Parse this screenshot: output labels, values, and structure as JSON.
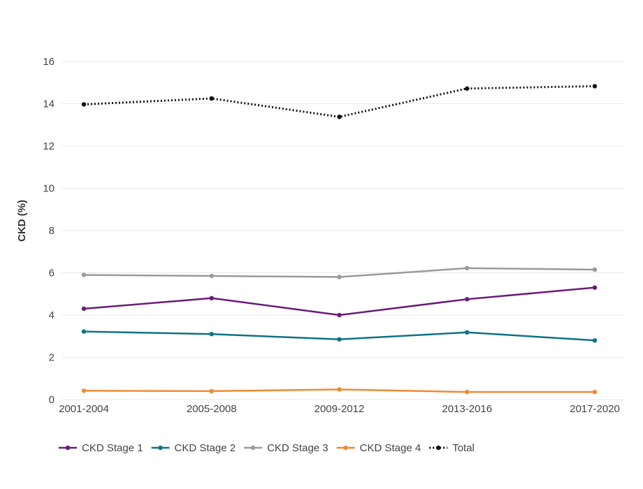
{
  "chart_data": {
    "type": "line",
    "title": "",
    "xlabel": "",
    "ylabel": "CKD (%)",
    "ylim": [
      0,
      16
    ],
    "yticks": [
      0,
      2,
      4,
      6,
      8,
      10,
      12,
      14,
      16
    ],
    "grid": true,
    "legend_position": "bottom-left",
    "categories": [
      "2001-2004",
      "2005-2008",
      "2009-2012",
      "2013-2016",
      "2017-2020"
    ],
    "series": [
      {
        "name": "CKD Stage 1",
        "color": "#6a1b7a",
        "style": "solid",
        "values": [
          4.3,
          4.8,
          4.0,
          4.75,
          5.3
        ]
      },
      {
        "name": "CKD Stage 2",
        "color": "#0f7285",
        "style": "solid",
        "values": [
          3.22,
          3.1,
          2.85,
          3.18,
          2.8
        ]
      },
      {
        "name": "CKD Stage 3",
        "color": "#9a9a9a",
        "style": "solid",
        "values": [
          5.9,
          5.85,
          5.8,
          6.22,
          6.15
        ]
      },
      {
        "name": "CKD Stage 4",
        "color": "#f08a32",
        "style": "solid",
        "values": [
          0.42,
          0.4,
          0.48,
          0.36,
          0.36
        ]
      },
      {
        "name": "Total",
        "color": "#111111",
        "style": "dotted",
        "values": [
          13.97,
          14.25,
          13.38,
          14.72,
          14.83
        ]
      }
    ]
  }
}
